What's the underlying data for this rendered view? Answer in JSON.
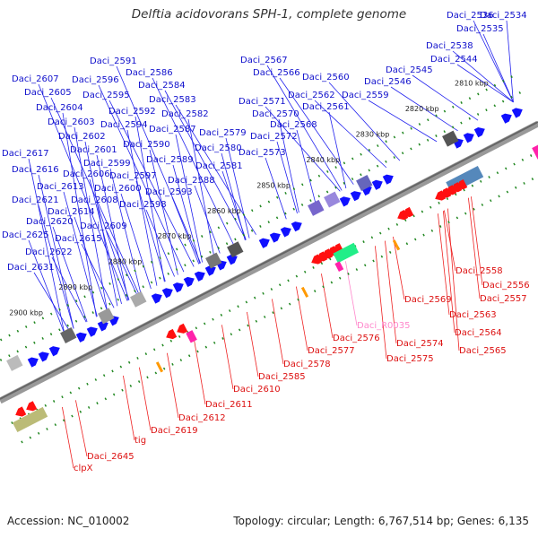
{
  "title": "Delftia acidovorans SPH-1, complete genome",
  "footer": {
    "accession": "Accession: NC_010002",
    "meta": "Topology: circular; Length: 6,767,514 bp; Genes: 6,135"
  },
  "colors": {
    "forward_gene": "#1010ff",
    "reverse_gene": "#ff1010",
    "rna_label": "#ff88cc",
    "axis": "#888888",
    "tick": "#228822"
  },
  "ticks": [
    {
      "kbp": 2810,
      "label": "2810 kbp"
    },
    {
      "kbp": 2820,
      "label": "2820 kbp"
    },
    {
      "kbp": 2830,
      "label": "2830 kbp"
    },
    {
      "kbp": 2840,
      "label": "2840 kbp"
    },
    {
      "kbp": 2850,
      "label": "2850 kbp"
    },
    {
      "kbp": 2860,
      "label": "2860 kbp"
    },
    {
      "kbp": 2870,
      "label": "2870 kbp"
    },
    {
      "kbp": 2880,
      "label": "2880 kbp"
    },
    {
      "kbp": 2890,
      "label": "2890 kbp"
    },
    {
      "kbp": 2900,
      "label": "2900 kbp"
    }
  ],
  "forward_labels": [
    "Daci_2534",
    "Daci_2536",
    "Daci_2535",
    "Daci_2538",
    "Daci_2544",
    "Daci_2545",
    "Daci_2546",
    "Daci_2567",
    "Daci_2566",
    "Daci_2560",
    "Daci_2562",
    "Daci_2559",
    "Daci_2571",
    "Daci_2561",
    "Daci_2570",
    "Daci_2568",
    "Daci_2572",
    "Daci_2573",
    "Daci_2591",
    "Daci_2586",
    "Daci_2584",
    "Daci_2583",
    "Daci_2582",
    "Daci_2587",
    "Daci_2579",
    "Daci_2580",
    "Daci_2581",
    "Daci_2607",
    "Daci_2596",
    "Daci_2605",
    "Daci_2595",
    "Daci_2604",
    "Daci_2592",
    "Daci_2603",
    "Daci_2594",
    "Daci_2602",
    "Daci_2590",
    "Daci_2601",
    "Daci_2589",
    "Daci_2599",
    "Daci_2606",
    "Daci_2597",
    "Daci_2600",
    "Daci_2588",
    "Daci_2593",
    "Daci_2617",
    "Daci_2608",
    "Daci_2598",
    "Daci_2616",
    "Daci_2613",
    "Daci_2621",
    "Daci_2614",
    "Daci_2620",
    "Daci_2609",
    "Daci_2625",
    "Daci_2615",
    "Daci_2622",
    "Daci_2631"
  ],
  "reverse_labels": [
    "Daci_2558",
    "Daci_2556",
    "Daci_2557",
    "Daci_2569",
    "Daci_2563",
    "Daci_R0035",
    "Daci_2564",
    "Daci_2576",
    "Daci_2574",
    "Daci_2565",
    "Daci_2577",
    "Daci_2575",
    "Daci_2578",
    "Daci_2585",
    "Daci_2610",
    "Daci_2611",
    "Daci_2612",
    "Daci_2619",
    "tig",
    "Daci_2645",
    "clpX"
  ]
}
